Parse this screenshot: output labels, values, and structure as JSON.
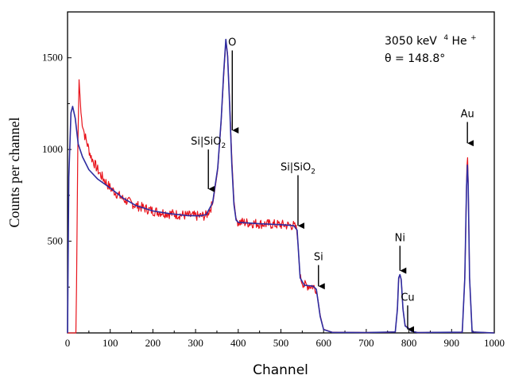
{
  "chart_data": {
    "type": "line",
    "xlabel": "Channel",
    "ylabel": "Counts per channel",
    "xlim": [
      0,
      1000
    ],
    "ylim": [
      0,
      1750
    ],
    "x_ticks": [
      0,
      100,
      200,
      300,
      400,
      500,
      600,
      700,
      800,
      900,
      1000
    ],
    "y_ticks": [
      500,
      1000,
      1500
    ],
    "grid": false,
    "info_text": {
      "beam_energy": "3050 keV",
      "beam_mass": "4",
      "beam_ion": "He",
      "beam_charge": "+",
      "angle": "θ = 148.8°"
    },
    "annotations": [
      {
        "label": "O",
        "x": 386,
        "y_tip": 1100,
        "y_tail": 1540
      },
      {
        "label": "Si|SiO",
        "sub": "2",
        "x": 330,
        "y_tip": 780,
        "y_tail": 1000
      },
      {
        "label": "Si|SiO",
        "sub": "2",
        "x": 540,
        "y_tip": 580,
        "y_tail": 860
      },
      {
        "label": "Si",
        "x": 588,
        "y_tip": 250,
        "y_tail": 370
      },
      {
        "label": "Ni",
        "x": 779,
        "y_tip": 335,
        "y_tail": 475
      },
      {
        "label": "Cu",
        "x": 797,
        "y_tip": 15,
        "y_tail": 150
      },
      {
        "label": "Au",
        "x": 937,
        "y_tip": 1030,
        "y_tail": 1150
      }
    ],
    "series": [
      {
        "color": "#e8141c",
        "points": [
          [
            0,
            0
          ],
          [
            20,
            0
          ],
          [
            24,
            1000
          ],
          [
            27,
            1380
          ],
          [
            32,
            1180
          ],
          [
            40,
            1080
          ],
          [
            55,
            960
          ],
          [
            75,
            870
          ],
          [
            100,
            790
          ],
          [
            130,
            730
          ],
          [
            160,
            695
          ],
          [
            200,
            665
          ],
          [
            240,
            650
          ],
          [
            280,
            640
          ],
          [
            310,
            636
          ],
          [
            325,
            640
          ],
          [
            340,
            700
          ],
          [
            352,
            890
          ],
          [
            360,
            1150
          ],
          [
            366,
            1400
          ],
          [
            371,
            1595
          ],
          [
            375,
            1520
          ],
          [
            380,
            1250
          ],
          [
            385,
            950
          ],
          [
            390,
            720
          ],
          [
            395,
            620
          ],
          [
            400,
            605
          ],
          [
            450,
            595
          ],
          [
            500,
            590
          ],
          [
            530,
            585
          ],
          [
            538,
            560
          ],
          [
            545,
            300
          ],
          [
            555,
            260
          ],
          [
            575,
            255
          ],
          [
            583,
            240
          ],
          [
            592,
            95
          ],
          [
            600,
            20
          ],
          [
            620,
            4
          ],
          [
            700,
            2
          ],
          [
            768,
            5
          ],
          [
            773,
            130
          ],
          [
            776,
            300
          ],
          [
            779,
            318
          ],
          [
            782,
            290
          ],
          [
            786,
            130
          ],
          [
            791,
            40
          ],
          [
            800,
            25
          ],
          [
            806,
            10
          ],
          [
            820,
            2
          ],
          [
            925,
            4
          ],
          [
            931,
            300
          ],
          [
            935,
            820
          ],
          [
            937,
            1000
          ],
          [
            939,
            820
          ],
          [
            942,
            300
          ],
          [
            948,
            5
          ],
          [
            1000,
            0
          ]
        ]
      },
      {
        "color": "#2e2ca0",
        "points": [
          [
            0,
            0
          ],
          [
            3,
            850
          ],
          [
            8,
            1200
          ],
          [
            12,
            1235
          ],
          [
            18,
            1170
          ],
          [
            25,
            1030
          ],
          [
            35,
            960
          ],
          [
            50,
            890
          ],
          [
            70,
            840
          ],
          [
            100,
            790
          ],
          [
            130,
            735
          ],
          [
            160,
            695
          ],
          [
            200,
            665
          ],
          [
            240,
            650
          ],
          [
            280,
            640
          ],
          [
            310,
            638
          ],
          [
            325,
            645
          ],
          [
            340,
            710
          ],
          [
            352,
            900
          ],
          [
            360,
            1160
          ],
          [
            366,
            1420
          ],
          [
            371,
            1600
          ],
          [
            375,
            1510
          ],
          [
            380,
            1230
          ],
          [
            385,
            920
          ],
          [
            390,
            700
          ],
          [
            395,
            615
          ],
          [
            400,
            603
          ],
          [
            450,
            595
          ],
          [
            500,
            590
          ],
          [
            530,
            585
          ],
          [
            538,
            560
          ],
          [
            545,
            300
          ],
          [
            555,
            260
          ],
          [
            575,
            255
          ],
          [
            583,
            238
          ],
          [
            592,
            90
          ],
          [
            600,
            18
          ],
          [
            620,
            3
          ],
          [
            700,
            2
          ],
          [
            768,
            5
          ],
          [
            773,
            130
          ],
          [
            776,
            300
          ],
          [
            779,
            318
          ],
          [
            782,
            290
          ],
          [
            786,
            130
          ],
          [
            791,
            38
          ],
          [
            800,
            23
          ],
          [
            806,
            9
          ],
          [
            820,
            2
          ],
          [
            925,
            4
          ],
          [
            931,
            300
          ],
          [
            935,
            800
          ],
          [
            937,
            915
          ],
          [
            939,
            800
          ],
          [
            942,
            300
          ],
          [
            948,
            5
          ],
          [
            1000,
            0
          ]
        ]
      }
    ]
  }
}
